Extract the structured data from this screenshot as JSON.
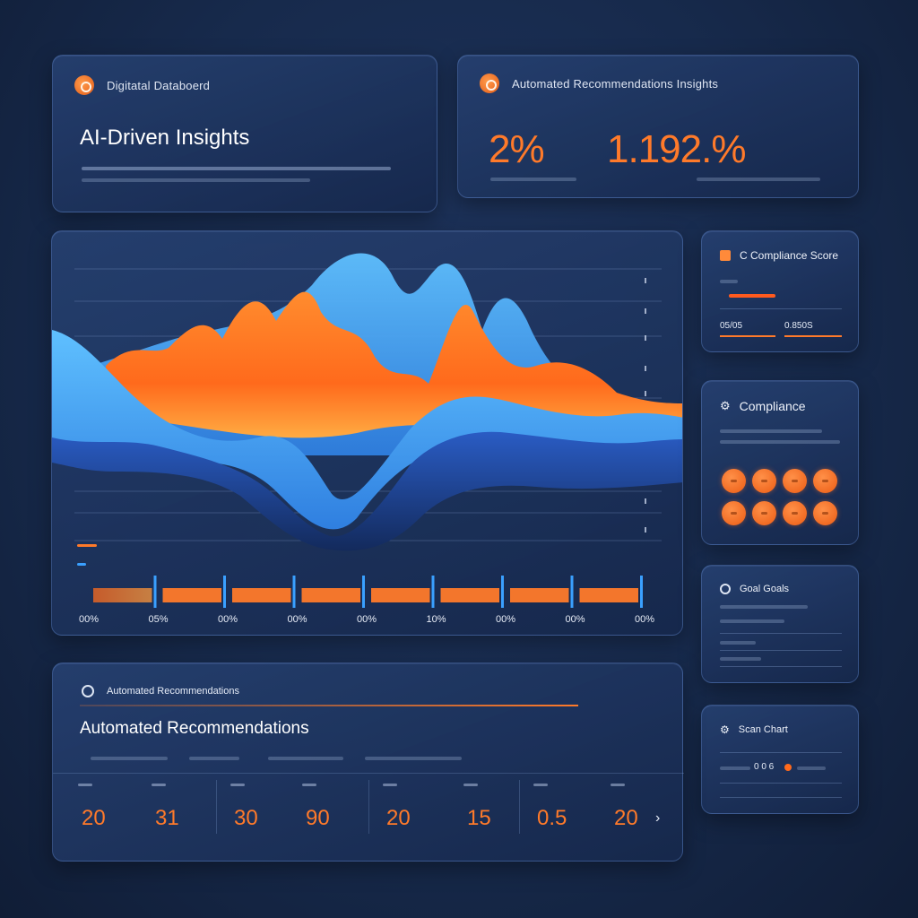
{
  "dashboard_card": {
    "eyebrow": "Digitatal Databoerd",
    "title": "AI-Driven Insights",
    "icon": "target-icon"
  },
  "recs_top_card": {
    "eyebrow": "Automated Recommendations Insights",
    "stat_1": "2%",
    "stat_2": "1.192.%",
    "icon": "target-icon"
  },
  "chart": {
    "x_ticks": [
      "00%",
      "05%",
      "00%",
      "00%",
      "00%",
      "10%",
      "00%",
      "00%",
      "00%"
    ],
    "colors": {
      "orange": "#ff7a2a",
      "blue": "#3aa0ff",
      "navy": "#1b3a7a"
    }
  },
  "score_card": {
    "title": "C Compliance Score",
    "value_left": "05/05",
    "value_right": "0.850S",
    "icon": "flag-icon"
  },
  "compliance_card": {
    "title": "Compliance",
    "icon": "gear-icon",
    "items": 8
  },
  "goal_card": {
    "title": "Goal Goals",
    "icon": "ring-icon"
  },
  "scan_card": {
    "title": "Scan Chart",
    "value": "0 0 6",
    "icon": "gear-icon"
  },
  "bottom_card": {
    "eyebrow": "Automated Recommendations",
    "title": "Automated Recommendations",
    "icon": "ring-icon",
    "numbers": [
      "20",
      "31",
      "30",
      "90",
      "20",
      "15",
      "0.5",
      "20"
    ],
    "arrow": "›"
  }
}
